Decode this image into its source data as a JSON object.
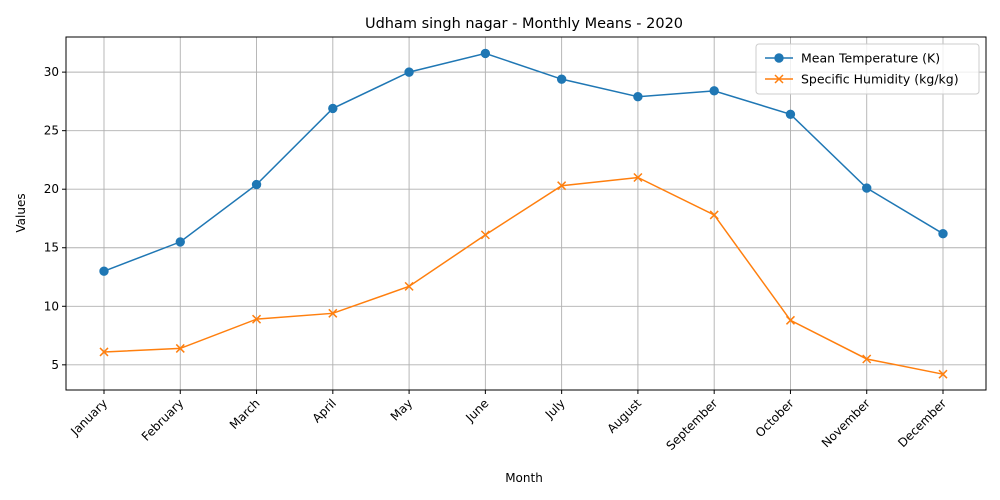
{
  "chart_data": {
    "type": "line",
    "title": "Udham singh nagar - Monthly Means - 2020",
    "xlabel": "Month",
    "ylabel": "Values",
    "categories": [
      "January",
      "February",
      "March",
      "April",
      "May",
      "June",
      "July",
      "August",
      "September",
      "October",
      "November",
      "December"
    ],
    "ylim": [
      2.85,
      33.0
    ],
    "yticks": [
      5,
      10,
      15,
      20,
      25,
      30
    ],
    "grid": true,
    "legend_position": "top-right",
    "series": [
      {
        "name": "Mean Temperature (K)",
        "color": "#1f77b4",
        "marker": "circle",
        "values": [
          13.0,
          15.5,
          20.4,
          26.9,
          30.0,
          31.6,
          29.4,
          27.9,
          28.4,
          26.4,
          20.1,
          16.2
        ]
      },
      {
        "name": "Specific Humidity (kg/kg)",
        "color": "#ff7f0e",
        "marker": "x",
        "values": [
          6.1,
          6.4,
          8.9,
          9.4,
          11.7,
          16.1,
          20.3,
          21.0,
          17.8,
          8.8,
          5.5,
          4.2
        ]
      }
    ]
  }
}
